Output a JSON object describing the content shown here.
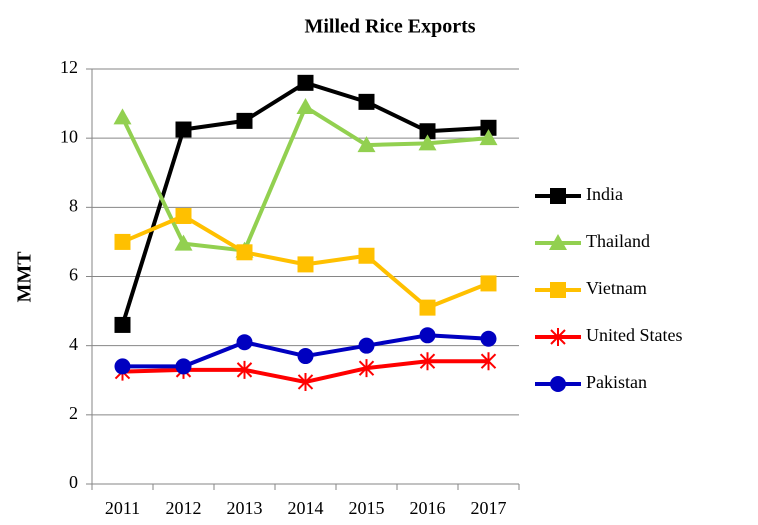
{
  "chart_data": {
    "type": "line",
    "title": "Milled Rice Exports",
    "y_label": "MMT",
    "categories": [
      "2011",
      "2012",
      "2013",
      "2014",
      "2015",
      "2016",
      "2017"
    ],
    "series": [
      {
        "name": "India",
        "color": "#000000",
        "marker": "square",
        "values": [
          4.6,
          10.25,
          10.5,
          11.6,
          11.05,
          10.2,
          10.3
        ]
      },
      {
        "name": "Thailand",
        "color": "#92d050",
        "marker": "triangle",
        "values": [
          10.6,
          6.95,
          6.75,
          10.9,
          9.8,
          9.85,
          10.0
        ]
      },
      {
        "name": "Vietnam",
        "color": "#ffc000",
        "marker": "square",
        "values": [
          7.0,
          7.75,
          6.7,
          6.35,
          6.6,
          5.1,
          5.8
        ]
      },
      {
        "name": "United States",
        "color": "#ff0000",
        "marker": "asterisk",
        "values": [
          3.25,
          3.3,
          3.3,
          2.95,
          3.35,
          3.55,
          3.55
        ]
      },
      {
        "name": "Pakistan",
        "color": "#0000c0",
        "marker": "circle",
        "values": [
          3.4,
          3.4,
          4.1,
          3.7,
          4.0,
          4.3,
          4.2
        ]
      }
    ],
    "ylim": [
      0,
      12
    ],
    "yticks": [
      0,
      2,
      4,
      6,
      8,
      10,
      12
    ],
    "grid": true,
    "legend": "right"
  }
}
